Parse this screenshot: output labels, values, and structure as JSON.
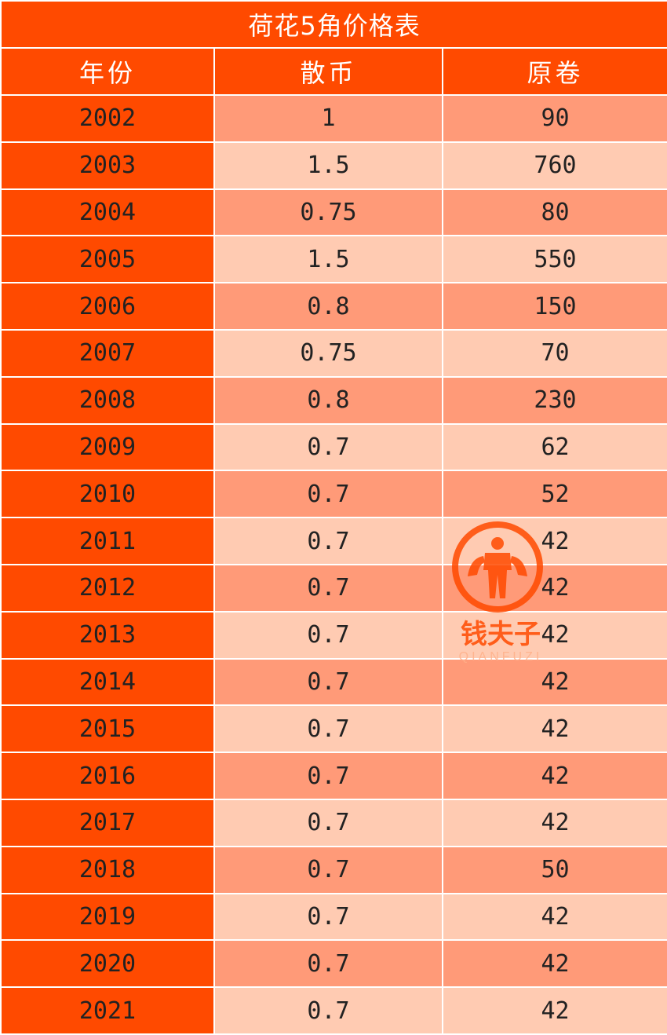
{
  "table": {
    "title": "荷花5角价格表",
    "headers": [
      "年份",
      "散币",
      "原卷"
    ],
    "rows": [
      {
        "year": "2002",
        "loose": "1",
        "roll": "90"
      },
      {
        "year": "2003",
        "loose": "1.5",
        "roll": "760"
      },
      {
        "year": "2004",
        "loose": "0.75",
        "roll": "80"
      },
      {
        "year": "2005",
        "loose": "1.5",
        "roll": "550"
      },
      {
        "year": "2006",
        "loose": "0.8",
        "roll": "150"
      },
      {
        "year": "2007",
        "loose": "0.75",
        "roll": "70"
      },
      {
        "year": "2008",
        "loose": "0.8",
        "roll": "230"
      },
      {
        "year": "2009",
        "loose": "0.7",
        "roll": "62"
      },
      {
        "year": "2010",
        "loose": "0.7",
        "roll": "52"
      },
      {
        "year": "2011",
        "loose": "0.7",
        "roll": "42"
      },
      {
        "year": "2012",
        "loose": "0.7",
        "roll": "42"
      },
      {
        "year": "2013",
        "loose": "0.7",
        "roll": "42"
      },
      {
        "year": "2014",
        "loose": "0.7",
        "roll": "42"
      },
      {
        "year": "2015",
        "loose": "0.7",
        "roll": "42"
      },
      {
        "year": "2016",
        "loose": "0.7",
        "roll": "42"
      },
      {
        "year": "2017",
        "loose": "0.7",
        "roll": "42"
      },
      {
        "year": "2018",
        "loose": "0.7",
        "roll": "50"
      },
      {
        "year": "2019",
        "loose": "0.7",
        "roll": "42"
      },
      {
        "year": "2020",
        "loose": "0.7",
        "roll": "42"
      },
      {
        "year": "2021",
        "loose": "0.7",
        "roll": "42"
      }
    ]
  },
  "watermark": {
    "text": "钱夫子",
    "subtext": "QIANFUZI",
    "icon": "qianfuzi-logo-icon"
  },
  "colors": {
    "header": "#ff4a00",
    "row_dark": "#ff9a78",
    "row_light": "#ffcbb2"
  }
}
